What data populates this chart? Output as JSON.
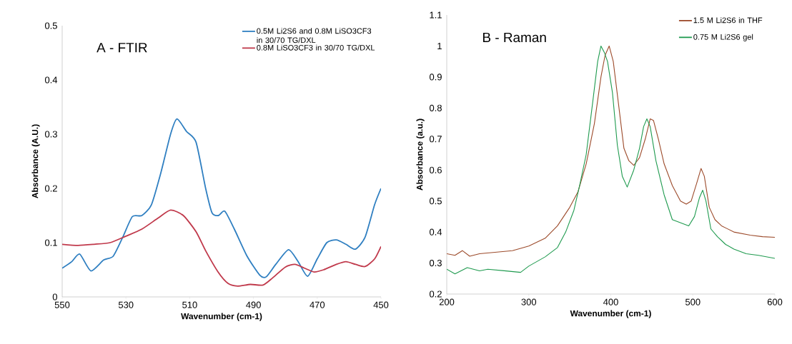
{
  "chart_data": [
    {
      "type": "line",
      "title": "A - FTIR",
      "xlabel": "Wavenumber (cm-1)",
      "ylabel": "Absorbance (A.U.)",
      "xlim": [
        550,
        450
      ],
      "ylim": [
        0,
        0.5
      ],
      "xticks": [
        550,
        530,
        510,
        490,
        470,
        450
      ],
      "yticks": [
        0,
        0.1,
        0.2,
        0.3,
        0.4,
        0.5
      ],
      "legend": "top right",
      "marker": "none",
      "grid": false,
      "series": [
        {
          "name": "0.5M Li2S6 and 0.8M LiSO3CF3 in 30/70 TG/DXL",
          "color": "#2f7fc1",
          "x": [
            550,
            547,
            544.5,
            541,
            537,
            534,
            531,
            528,
            525,
            522,
            519,
            516,
            514,
            511,
            508,
            505,
            503,
            501,
            499,
            496,
            492,
            488,
            486,
            483,
            479,
            476,
            473,
            470,
            467,
            464,
            461,
            458,
            455,
            452,
            450
          ],
          "values": [
            0.053,
            0.065,
            0.079,
            0.048,
            0.068,
            0.075,
            0.11,
            0.148,
            0.15,
            0.17,
            0.23,
            0.3,
            0.328,
            0.305,
            0.285,
            0.2,
            0.155,
            0.15,
            0.158,
            0.125,
            0.075,
            0.04,
            0.037,
            0.06,
            0.087,
            0.065,
            0.038,
            0.07,
            0.1,
            0.105,
            0.097,
            0.088,
            0.11,
            0.17,
            0.2
          ]
        },
        {
          "name": "0.8M LiSO3CF3 in 30/70 TG/DXL",
          "color": "#c0394b",
          "x": [
            550,
            545,
            540,
            535,
            530,
            525,
            520,
            516,
            512,
            508,
            505,
            501,
            498,
            495,
            491,
            487,
            484,
            480,
            477,
            474,
            471,
            468,
            464,
            461,
            458,
            455,
            452,
            450
          ],
          "values": [
            0.097,
            0.095,
            0.097,
            0.1,
            0.112,
            0.125,
            0.145,
            0.16,
            0.15,
            0.12,
            0.085,
            0.045,
            0.025,
            0.02,
            0.023,
            0.022,
            0.035,
            0.055,
            0.06,
            0.053,
            0.046,
            0.05,
            0.06,
            0.065,
            0.06,
            0.056,
            0.07,
            0.093
          ]
        }
      ]
    },
    {
      "type": "line",
      "title": "B - Raman",
      "xlabel": "Wavenumber (cm-1)",
      "ylabel": "Absorbance (a.u.)",
      "xlim": [
        200,
        600
      ],
      "ylim": [
        0.2,
        1.1
      ],
      "xticks": [
        200,
        300,
        400,
        500,
        600
      ],
      "yticks": [
        0.2,
        0.3,
        0.4,
        0.5,
        0.6,
        0.7,
        0.8,
        0.9,
        1,
        1.1
      ],
      "legend": "top right",
      "marker": "none",
      "grid": false,
      "series": [
        {
          "name": "1.5 M Li2S6 in THF",
          "color": "#9c4a2a",
          "x": [
            200,
            210,
            219,
            228,
            240,
            260,
            280,
            300,
            320,
            335,
            350,
            360,
            370,
            380,
            388,
            393,
            398,
            403,
            410,
            416,
            422,
            428,
            435,
            442,
            448,
            452,
            458,
            465,
            475,
            485,
            492,
            498,
            505,
            510,
            514,
            520,
            527,
            535,
            550,
            570,
            585,
            600
          ],
          "values": [
            0.33,
            0.325,
            0.34,
            0.322,
            0.33,
            0.335,
            0.34,
            0.355,
            0.38,
            0.42,
            0.48,
            0.53,
            0.62,
            0.75,
            0.9,
            0.97,
            1.0,
            0.95,
            0.8,
            0.67,
            0.63,
            0.615,
            0.64,
            0.7,
            0.765,
            0.76,
            0.7,
            0.62,
            0.55,
            0.5,
            0.49,
            0.5,
            0.56,
            0.605,
            0.58,
            0.48,
            0.44,
            0.42,
            0.4,
            0.39,
            0.385,
            0.383
          ]
        },
        {
          "name": "0.75 M Li2S6 gel",
          "color": "#1e9a4e",
          "x": [
            200,
            210,
            225,
            240,
            250,
            270,
            290,
            300,
            320,
            335,
            345,
            355,
            362,
            370,
            378,
            384,
            388,
            392,
            396,
            402,
            408,
            414,
            420,
            428,
            435,
            440,
            444,
            448,
            455,
            465,
            475,
            485,
            495,
            502,
            508,
            512,
            516,
            522,
            530,
            540,
            550,
            565,
            580,
            600
          ],
          "values": [
            0.28,
            0.265,
            0.285,
            0.275,
            0.28,
            0.275,
            0.27,
            0.29,
            0.32,
            0.35,
            0.4,
            0.47,
            0.55,
            0.65,
            0.82,
            0.95,
            1.0,
            0.98,
            0.95,
            0.85,
            0.68,
            0.58,
            0.545,
            0.6,
            0.67,
            0.74,
            0.765,
            0.74,
            0.63,
            0.52,
            0.44,
            0.43,
            0.42,
            0.45,
            0.51,
            0.535,
            0.5,
            0.41,
            0.385,
            0.36,
            0.345,
            0.33,
            0.325,
            0.315
          ]
        }
      ]
    }
  ]
}
